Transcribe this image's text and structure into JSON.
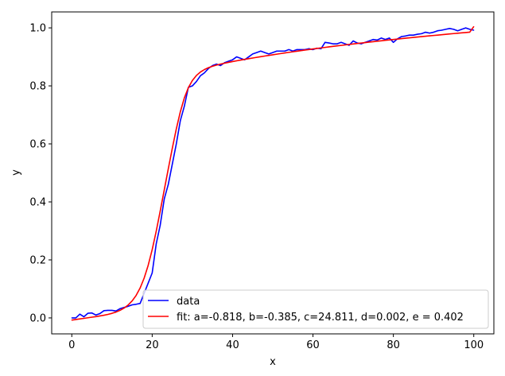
{
  "chart_data": {
    "type": "line",
    "title": "",
    "xlabel": "x",
    "ylabel": "y",
    "xlim": [
      -5,
      105
    ],
    "ylim": [
      -0.055,
      1.055
    ],
    "xticks": [
      0,
      20,
      40,
      60,
      80,
      100
    ],
    "yticks": [
      0.0,
      0.2,
      0.4,
      0.6,
      0.8,
      1.0
    ],
    "xtick_labels": [
      "0",
      "20",
      "40",
      "60",
      "80",
      "100"
    ],
    "ytick_labels": [
      "0.0",
      "0.2",
      "0.4",
      "0.6",
      "0.8",
      "1.0"
    ],
    "grid": false,
    "legend_position": "lower-right",
    "series": [
      {
        "name": "data",
        "color": "#0000ff",
        "x": [
          0,
          1,
          2,
          3,
          4,
          5,
          6,
          7,
          8,
          9,
          10,
          11,
          12,
          13,
          14,
          15,
          16,
          17,
          18,
          19,
          20,
          21,
          22,
          23,
          24,
          25,
          26,
          27,
          28,
          29,
          30,
          31,
          32,
          33,
          34,
          35,
          36,
          37,
          38,
          39,
          40,
          41,
          42,
          43,
          44,
          45,
          46,
          47,
          48,
          49,
          50,
          51,
          52,
          53,
          54,
          55,
          56,
          57,
          58,
          59,
          60,
          61,
          62,
          63,
          64,
          65,
          66,
          67,
          68,
          69,
          70,
          71,
          72,
          73,
          74,
          75,
          76,
          77,
          78,
          79,
          80,
          81,
          82,
          83,
          84,
          85,
          86,
          87,
          88,
          89,
          90,
          91,
          92,
          93,
          94,
          95,
          96,
          97,
          98,
          99,
          100
        ],
        "y": [
          0.0,
          0.0,
          0.013,
          0.004,
          0.016,
          0.017,
          0.01,
          0.015,
          0.025,
          0.026,
          0.026,
          0.024,
          0.032,
          0.036,
          0.04,
          0.045,
          0.047,
          0.05,
          0.085,
          0.12,
          0.155,
          0.255,
          0.32,
          0.41,
          0.46,
          0.53,
          0.6,
          0.68,
          0.73,
          0.795,
          0.8,
          0.815,
          0.835,
          0.845,
          0.86,
          0.87,
          0.875,
          0.87,
          0.88,
          0.885,
          0.89,
          0.9,
          0.895,
          0.89,
          0.9,
          0.91,
          0.915,
          0.92,
          0.915,
          0.91,
          0.915,
          0.92,
          0.92,
          0.92,
          0.925,
          0.92,
          0.925,
          0.925,
          0.925,
          0.928,
          0.925,
          0.93,
          0.928,
          0.95,
          0.948,
          0.945,
          0.945,
          0.95,
          0.945,
          0.94,
          0.955,
          0.948,
          0.945,
          0.95,
          0.955,
          0.96,
          0.958,
          0.965,
          0.96,
          0.965,
          0.95,
          0.962,
          0.97,
          0.972,
          0.975,
          0.975,
          0.978,
          0.98,
          0.985,
          0.982,
          0.985,
          0.99,
          0.992,
          0.995,
          0.998,
          0.995,
          0.99,
          0.995,
          1.0,
          0.995,
          0.992
        ]
      },
      {
        "name": "fit: a=-0.818, b=-0.385, c=24.811, d=0.002, e = 0.402",
        "color": "#ff0000",
        "x": [
          0,
          1,
          2,
          3,
          4,
          5,
          6,
          7,
          8,
          9,
          10,
          11,
          12,
          13,
          14,
          15,
          16,
          17,
          18,
          19,
          20,
          21,
          22,
          23,
          24,
          25,
          26,
          27,
          28,
          29,
          30,
          31,
          32,
          33,
          34,
          35,
          36,
          37,
          38,
          39,
          40,
          41,
          42,
          43,
          44,
          45,
          46,
          47,
          48,
          49,
          50,
          51,
          52,
          53,
          54,
          55,
          56,
          57,
          58,
          59,
          60,
          61,
          62,
          63,
          64,
          65,
          66,
          67,
          68,
          69,
          70,
          71,
          72,
          73,
          74,
          75,
          76,
          77,
          78,
          79,
          80,
          81,
          82,
          83,
          84,
          85,
          86,
          87,
          88,
          89,
          90,
          91,
          92,
          93,
          94,
          95,
          96,
          97,
          98,
          99,
          100
        ],
        "y": [
          -0.0075,
          -0.0055,
          -0.0035,
          -0.0015,
          0.0005,
          0.0025,
          0.0045,
          0.0068,
          0.0093,
          0.0122,
          0.0158,
          0.0202,
          0.0261,
          0.0338,
          0.0443,
          0.0584,
          0.0775,
          0.1032,
          0.1372,
          0.1811,
          0.2353,
          0.2989,
          0.3686,
          0.4412,
          0.5137,
          0.5846,
          0.6516,
          0.7107,
          0.7585,
          0.7938,
          0.8187,
          0.8359,
          0.8478,
          0.8563,
          0.8627,
          0.8676,
          0.8717,
          0.8752,
          0.8783,
          0.8812,
          0.8839,
          0.8865,
          0.889,
          0.8914,
          0.8938,
          0.8961,
          0.8984,
          0.9007,
          0.9029,
          0.9051,
          0.9072,
          0.9094,
          0.9115,
          0.9136,
          0.9156,
          0.9176,
          0.9196,
          0.9216,
          0.9235,
          0.9254,
          0.9273,
          0.9291,
          0.931,
          0.9327,
          0.9345,
          0.9362,
          0.9379,
          0.9396,
          0.9413,
          0.943,
          0.9446,
          0.9462,
          0.9478,
          0.9494,
          0.951,
          0.9525,
          0.954,
          0.9556,
          0.9571,
          0.9585,
          0.96,
          0.9614,
          0.9629,
          0.9643,
          0.9657,
          0.9671,
          0.9685,
          0.9698,
          0.9712,
          0.9725,
          0.9738,
          0.9751,
          0.9764,
          0.9777,
          0.979,
          0.9803,
          0.9815,
          0.9828,
          0.984,
          0.9852,
          1.0045
        ]
      }
    ]
  }
}
